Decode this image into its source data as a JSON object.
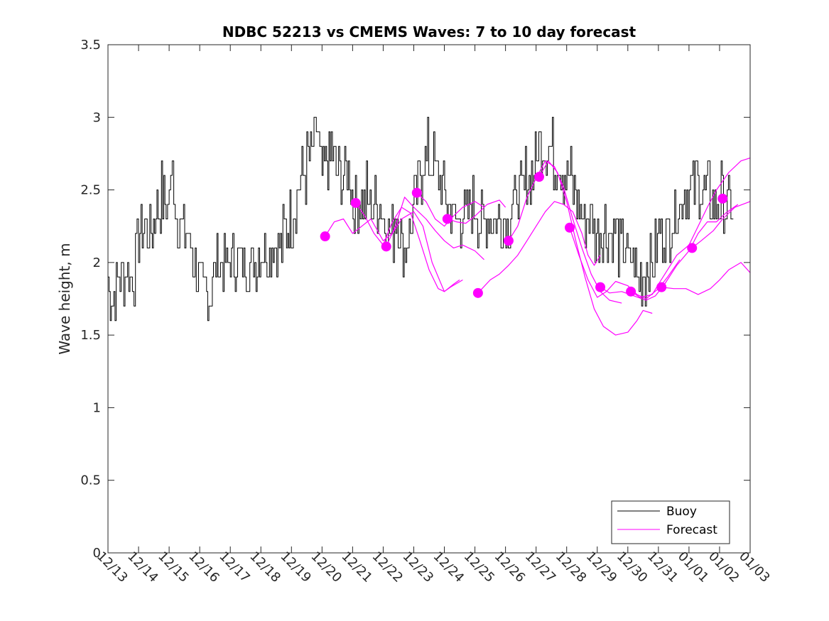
{
  "chart_data": {
    "type": "line",
    "title": "NDBC 52213 vs CMEMS Waves: 7 to 10 day forecast",
    "xlabel": "",
    "ylabel": "Wave height, m",
    "xlim": [
      0,
      21
    ],
    "ylim": [
      0,
      3.5
    ],
    "grid": false,
    "x_tick_labels": [
      "12/13",
      "12/14",
      "12/15",
      "12/16",
      "12/17",
      "12/18",
      "12/19",
      "12/20",
      "12/21",
      "12/22",
      "12/23",
      "12/24",
      "12/25",
      "12/26",
      "12/27",
      "12/28",
      "12/29",
      "12/30",
      "12/31",
      "01/01",
      "01/02",
      "01/03"
    ],
    "y_ticks": [
      0,
      0.5,
      1,
      1.5,
      2,
      2.5,
      3,
      3.5
    ],
    "y_tick_labels": [
      "0",
      "0.5",
      "1",
      "1.5",
      "2",
      "2.5",
      "3",
      "3.5"
    ],
    "legend": {
      "location": "bottom-right",
      "entries": [
        "Buoy",
        "Forecast"
      ]
    },
    "colors": {
      "buoy": "#000000",
      "forecast": "#ff00ff",
      "axes": "#262626"
    },
    "series": [
      {
        "name": "Buoy",
        "color": "#000000",
        "note": "day index 0 = 12/13",
        "points": [
          [
            0,
            1.85
          ],
          [
            0.15,
            1.72
          ],
          [
            0.35,
            1.9
          ],
          [
            0.6,
            1.95
          ],
          [
            0.8,
            1.85
          ],
          [
            0.9,
            2.0
          ],
          [
            1.0,
            2.15
          ],
          [
            1.2,
            2.25
          ],
          [
            1.45,
            2.2
          ],
          [
            1.6,
            2.4
          ],
          [
            1.75,
            2.45
          ],
          [
            1.9,
            2.35
          ],
          [
            2.0,
            2.5
          ],
          [
            2.1,
            2.55
          ],
          [
            2.2,
            2.35
          ],
          [
            2.35,
            2.25
          ],
          [
            2.55,
            2.2
          ],
          [
            2.7,
            2.1
          ],
          [
            2.85,
            1.95
          ],
          [
            3.0,
            1.85
          ],
          [
            3.15,
            1.8
          ],
          [
            3.3,
            1.75
          ],
          [
            3.45,
            1.9
          ],
          [
            3.6,
            2.05
          ],
          [
            3.8,
            1.95
          ],
          [
            4.0,
            2.0
          ],
          [
            4.2,
            1.95
          ],
          [
            4.4,
            2.05
          ],
          [
            4.6,
            1.95
          ],
          [
            4.8,
            2.0
          ],
          [
            5.0,
            2.1
          ],
          [
            5.2,
            2.05
          ],
          [
            5.4,
            2.15
          ],
          [
            5.6,
            2.1
          ],
          [
            5.8,
            2.2
          ],
          [
            5.95,
            2.3
          ],
          [
            6.1,
            2.4
          ],
          [
            6.3,
            2.55
          ],
          [
            6.5,
            2.65
          ],
          [
            6.7,
            2.75
          ],
          [
            6.85,
            2.9
          ],
          [
            7.0,
            2.55
          ],
          [
            7.15,
            2.7
          ],
          [
            7.3,
            2.75
          ],
          [
            7.5,
            2.6
          ],
          [
            7.7,
            2.55
          ],
          [
            7.9,
            2.6
          ],
          [
            8.05,
            2.35
          ],
          [
            8.25,
            2.4
          ],
          [
            8.45,
            2.45
          ],
          [
            8.65,
            2.35
          ],
          [
            8.85,
            2.4
          ],
          [
            9.05,
            2.3
          ],
          [
            9.25,
            2.2
          ],
          [
            9.45,
            2.3
          ],
          [
            9.65,
            2.1
          ],
          [
            9.85,
            2.2
          ],
          [
            10.05,
            2.4
          ],
          [
            10.25,
            2.65
          ],
          [
            10.45,
            2.75
          ],
          [
            10.65,
            2.7
          ],
          [
            10.85,
            2.55
          ],
          [
            11.05,
            2.45
          ],
          [
            11.25,
            2.35
          ],
          [
            11.45,
            2.3
          ],
          [
            11.65,
            2.25
          ],
          [
            11.85,
            2.4
          ],
          [
            12.05,
            2.35
          ],
          [
            12.25,
            2.25
          ],
          [
            12.45,
            2.3
          ],
          [
            12.65,
            2.25
          ],
          [
            12.85,
            2.3
          ],
          [
            13.05,
            2.3
          ],
          [
            13.25,
            2.4
          ],
          [
            13.45,
            2.5
          ],
          [
            13.65,
            2.55
          ],
          [
            13.85,
            2.6
          ],
          [
            14.05,
            2.75
          ],
          [
            14.25,
            2.85
          ],
          [
            14.45,
            2.8
          ],
          [
            14.65,
            2.7
          ],
          [
            14.85,
            2.65
          ],
          [
            15.05,
            2.6
          ],
          [
            15.25,
            2.5
          ],
          [
            15.45,
            2.35
          ],
          [
            15.65,
            2.3
          ],
          [
            15.85,
            2.25
          ],
          [
            16.05,
            2.2
          ],
          [
            16.25,
            2.25
          ],
          [
            16.45,
            2.2
          ],
          [
            16.65,
            2.15
          ],
          [
            16.85,
            2.1
          ],
          [
            17.05,
            2.0
          ],
          [
            17.25,
            1.95
          ],
          [
            17.45,
            1.85
          ],
          [
            17.65,
            2.0
          ],
          [
            17.85,
            2.05
          ],
          [
            18.05,
            2.2
          ],
          [
            18.25,
            2.15
          ],
          [
            18.45,
            2.3
          ],
          [
            18.65,
            2.4
          ],
          [
            18.85,
            2.5
          ],
          [
            19.05,
            2.45
          ],
          [
            19.25,
            2.55
          ],
          [
            19.45,
            2.5
          ],
          [
            19.65,
            2.45
          ],
          [
            19.85,
            2.4
          ],
          [
            20.05,
            2.45
          ],
          [
            20.25,
            2.4
          ],
          [
            20.45,
            2.35
          ]
        ]
      },
      {
        "name": "Forecast",
        "color": "#ff00ff",
        "lines": [
          [
            [
              7.1,
              2.18
            ],
            [
              7.4,
              2.28
            ],
            [
              7.7,
              2.3
            ],
            [
              8.0,
              2.2
            ],
            [
              8.3,
              2.25
            ],
            [
              8.6,
              2.3
            ],
            [
              9.0,
              2.15
            ],
            [
              9.3,
              2.2
            ],
            [
              9.6,
              2.3
            ],
            [
              10.0,
              2.35
            ],
            [
              10.3,
              2.25
            ],
            [
              10.6,
              2.0
            ],
            [
              11.0,
              1.8
            ],
            [
              11.3,
              1.85
            ],
            [
              11.5,
              1.88
            ]
          ],
          [
            [
              8.1,
              2.41
            ],
            [
              8.4,
              2.32
            ],
            [
              8.7,
              2.2
            ],
            [
              9.0,
              2.12
            ],
            [
              9.3,
              2.28
            ],
            [
              9.6,
              2.38
            ],
            [
              9.9,
              2.34
            ],
            [
              10.2,
              2.15
            ],
            [
              10.5,
              1.95
            ],
            [
              10.8,
              1.82
            ],
            [
              11.0,
              1.8
            ],
            [
              11.2,
              1.83
            ],
            [
              11.6,
              1.88
            ]
          ],
          [
            [
              9.1,
              2.11
            ],
            [
              9.4,
              2.25
            ],
            [
              9.7,
              2.45
            ],
            [
              10.0,
              2.38
            ],
            [
              10.4,
              2.3
            ],
            [
              10.7,
              2.22
            ],
            [
              11.0,
              2.15
            ],
            [
              11.3,
              2.1
            ],
            [
              11.6,
              2.12
            ],
            [
              12.0,
              2.08
            ],
            [
              12.3,
              2.02
            ]
          ],
          [
            [
              10.1,
              2.48
            ],
            [
              10.4,
              2.42
            ],
            [
              10.7,
              2.3
            ],
            [
              11.0,
              2.25
            ],
            [
              11.3,
              2.32
            ],
            [
              11.6,
              2.38
            ],
            [
              12.0,
              2.42
            ],
            [
              12.3,
              2.38
            ]
          ],
          [
            [
              11.1,
              2.3
            ],
            [
              11.4,
              2.28
            ],
            [
              11.7,
              2.27
            ],
            [
              12.0,
              2.32
            ],
            [
              12.4,
              2.4
            ],
            [
              12.8,
              2.43
            ],
            [
              13.0,
              2.38
            ]
          ],
          [
            [
              12.1,
              1.79
            ],
            [
              12.5,
              1.88
            ],
            [
              12.8,
              1.92
            ],
            [
              13.1,
              1.98
            ],
            [
              13.4,
              2.05
            ],
            [
              13.7,
              2.15
            ],
            [
              14.0,
              2.25
            ],
            [
              14.3,
              2.35
            ],
            [
              14.6,
              2.42
            ],
            [
              14.9,
              2.4
            ],
            [
              15.2,
              2.35
            ],
            [
              15.5,
              2.2
            ],
            [
              15.7,
              2.05
            ],
            [
              15.9,
              1.98
            ],
            [
              16.1,
              2.05
            ]
          ],
          [
            [
              13.1,
              2.15
            ],
            [
              13.4,
              2.25
            ],
            [
              13.7,
              2.45
            ],
            [
              14.0,
              2.58
            ],
            [
              14.3,
              2.7
            ],
            [
              14.6,
              2.66
            ],
            [
              14.9,
              2.52
            ],
            [
              15.2,
              2.3
            ],
            [
              15.5,
              2.1
            ],
            [
              15.8,
              1.92
            ],
            [
              16.1,
              1.8
            ],
            [
              16.4,
              1.74
            ],
            [
              16.8,
              1.72
            ]
          ],
          [
            [
              14.1,
              2.59
            ],
            [
              14.4,
              2.7
            ],
            [
              14.7,
              2.62
            ],
            [
              15.0,
              2.42
            ],
            [
              15.3,
              2.15
            ],
            [
              15.6,
              1.9
            ],
            [
              15.9,
              1.68
            ],
            [
              16.2,
              1.56
            ],
            [
              16.6,
              1.5
            ],
            [
              17.0,
              1.52
            ],
            [
              17.3,
              1.6
            ],
            [
              17.5,
              1.67
            ],
            [
              17.8,
              1.65
            ]
          ],
          [
            [
              15.1,
              2.24
            ],
            [
              15.4,
              2.05
            ],
            [
              15.7,
              1.88
            ],
            [
              16.0,
              1.76
            ],
            [
              16.3,
              1.8
            ],
            [
              16.6,
              1.87
            ],
            [
              17.0,
              1.84
            ],
            [
              17.3,
              1.78
            ],
            [
              17.6,
              1.75
            ],
            [
              18.0,
              1.82
            ],
            [
              18.3,
              1.9
            ],
            [
              18.7,
              2.02
            ]
          ],
          [
            [
              16.1,
              1.83
            ],
            [
              16.4,
              1.79
            ],
            [
              16.8,
              1.8
            ],
            [
              17.2,
              1.77
            ],
            [
              17.6,
              1.74
            ],
            [
              17.9,
              1.77
            ],
            [
              18.2,
              1.85
            ],
            [
              18.6,
              1.98
            ],
            [
              19.0,
              2.08
            ],
            [
              19.3,
              2.2
            ],
            [
              19.6,
              2.28
            ],
            [
              19.9,
              2.28
            ],
            [
              20.2,
              2.34
            ],
            [
              20.6,
              2.4
            ]
          ],
          [
            [
              17.1,
              1.8
            ],
            [
              17.4,
              1.76
            ],
            [
              17.8,
              1.78
            ],
            [
              18.0,
              1.85
            ],
            [
              18.3,
              1.95
            ],
            [
              18.6,
              2.05
            ],
            [
              19.0,
              2.12
            ],
            [
              19.3,
              2.25
            ],
            [
              19.6,
              2.38
            ],
            [
              19.9,
              2.5
            ],
            [
              20.3,
              2.62
            ],
            [
              20.7,
              2.7
            ],
            [
              21.0,
              2.72
            ]
          ],
          [
            [
              18.1,
              1.83
            ],
            [
              18.5,
              1.82
            ],
            [
              18.9,
              1.82
            ],
            [
              19.3,
              1.78
            ],
            [
              19.7,
              1.82
            ],
            [
              20.0,
              1.88
            ],
            [
              20.3,
              1.95
            ],
            [
              20.7,
              2.0
            ],
            [
              21.0,
              1.93
            ]
          ],
          [
            [
              19.1,
              2.1
            ],
            [
              19.4,
              2.15
            ],
            [
              19.8,
              2.22
            ],
            [
              20.1,
              2.3
            ],
            [
              20.5,
              2.38
            ],
            [
              21.0,
              2.42
            ]
          ]
        ],
        "markers": [
          [
            7.1,
            2.18
          ],
          [
            8.1,
            2.41
          ],
          [
            9.1,
            2.11
          ],
          [
            10.1,
            2.48
          ],
          [
            11.1,
            2.3
          ],
          [
            12.1,
            1.79
          ],
          [
            13.1,
            2.15
          ],
          [
            14.1,
            2.59
          ],
          [
            15.1,
            2.24
          ],
          [
            16.1,
            1.83
          ],
          [
            17.1,
            1.8
          ],
          [
            18.1,
            1.83
          ],
          [
            19.1,
            2.1
          ],
          [
            20.1,
            2.44
          ]
        ]
      }
    ]
  }
}
